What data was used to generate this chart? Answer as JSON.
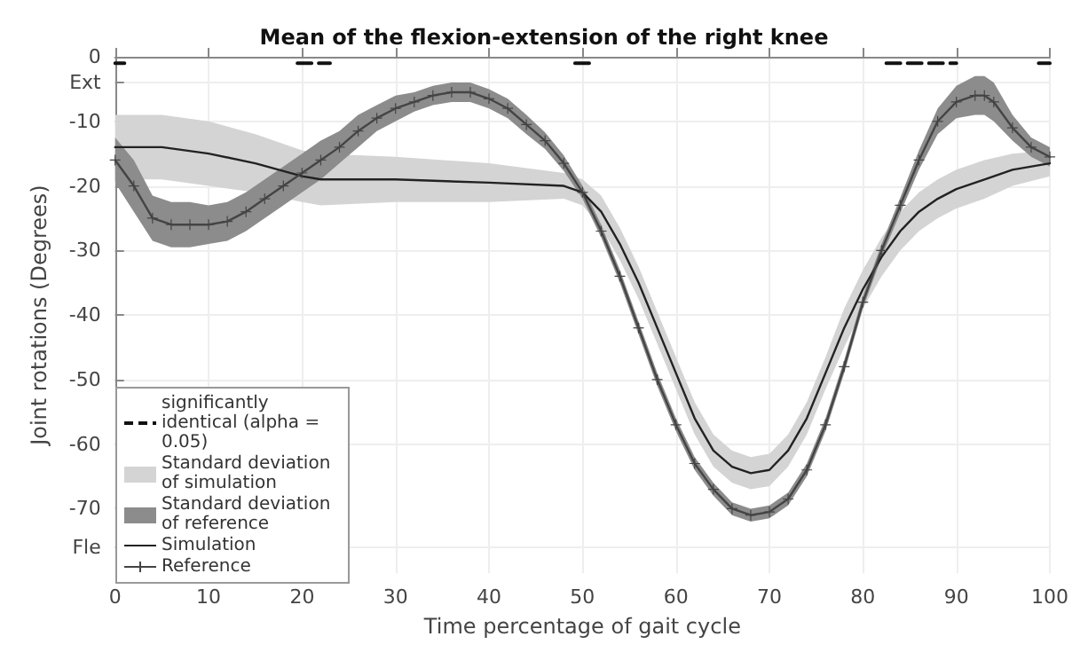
{
  "chart_data": {
    "type": "line",
    "title": "Mean of the flexion-extension of the right knee",
    "xlabel": "Time percentage of gait cycle",
    "ylabel": "Joint rotations (Degrees)",
    "xlim": [
      0,
      100
    ],
    "xticks": [
      0,
      10,
      20,
      30,
      40,
      50,
      60,
      70,
      80,
      90,
      100
    ],
    "ylim": [
      -80,
      0
    ],
    "yticks": [
      0,
      {
        "value": -4,
        "label": "Ext"
      },
      -10,
      -20,
      -30,
      -40,
      -50,
      -60,
      -70,
      {
        "value": -76,
        "label": "Fle"
      }
    ],
    "grid": true,
    "legend": "bottom left",
    "annotations": [
      "Standard deviation of simulation",
      "Standard deviation of reference"
    ],
    "series": [
      {
        "name": "significantly identical (alpha = 0.05)",
        "color": "#111111",
        "line_style": "dashed",
        "marker": "none",
        "x": [
          0,
          1,
          1.5,
          19.5,
          23,
          23.5,
          49.2,
          50.8,
          51.5,
          82.5,
          90,
          90.5,
          98.8,
          100
        ],
        "values": [
          -1,
          -1,
          null,
          -1,
          -1,
          null,
          -1,
          -1,
          null,
          -1,
          -1,
          null,
          -1,
          -1
        ]
      },
      {
        "name": "Simulation",
        "color": "#222222",
        "line_style": "solid",
        "marker": "none",
        "x": [
          0,
          5,
          10,
          15,
          20,
          22,
          30,
          40,
          48,
          50,
          52,
          54,
          56,
          58,
          60,
          62,
          64,
          66,
          68,
          70,
          72,
          74,
          76,
          78,
          80,
          82,
          84,
          86,
          88,
          90,
          93,
          96,
          100
        ],
        "values": [
          -14,
          -14,
          -15,
          -16.5,
          -18.5,
          -19,
          -19,
          -19.5,
          -20,
          -21,
          -24,
          -29,
          -35,
          -42,
          -49,
          -56,
          -61,
          -63.5,
          -64.5,
          -64,
          -61,
          -56,
          -49,
          -42,
          -36,
          -31,
          -27,
          -24,
          -22,
          -20.5,
          -19,
          -17.5,
          -16.5
        ],
        "upper": [
          -9,
          -9,
          -10,
          -12,
          -14.5,
          -15,
          -15.5,
          -16.5,
          -18,
          -19,
          -21.5,
          -26.5,
          -32.5,
          -39.5,
          -46.5,
          -53.5,
          -58.5,
          -61,
          -62,
          -61.5,
          -58.5,
          -53.5,
          -46.5,
          -39,
          -33,
          -28,
          -24,
          -21,
          -19,
          -17.5,
          -16,
          -15,
          -14.5
        ],
        "lower": [
          -19,
          -19,
          -20,
          -21,
          -22.5,
          -23,
          -22.5,
          -22.5,
          -22,
          -23,
          -26.5,
          -31.5,
          -37.5,
          -44.5,
          -51.5,
          -58.5,
          -63.5,
          -66,
          -67,
          -66.5,
          -63.5,
          -58.5,
          -51.5,
          -45,
          -39,
          -34,
          -30,
          -27,
          -25,
          -23.5,
          -22,
          -20,
          -18.5
        ]
      },
      {
        "name": "Reference",
        "color": "#444444",
        "line_style": "solid",
        "marker": "cross",
        "x": [
          0,
          2,
          4,
          6,
          8,
          10,
          12,
          14,
          16,
          18,
          20,
          22,
          24,
          26,
          28,
          30,
          32,
          34,
          36,
          38,
          40,
          42,
          44,
          46,
          48,
          50,
          52,
          54,
          56,
          58,
          60,
          62,
          64,
          66,
          68,
          70,
          72,
          74,
          76,
          78,
          80,
          82,
          84,
          86,
          88,
          90,
          92,
          93,
          94,
          96,
          98,
          100
        ],
        "values": [
          -16,
          -20,
          -25,
          -26,
          -26,
          -26,
          -25.5,
          -24,
          -22,
          -20,
          -18,
          -16,
          -14,
          -11.5,
          -9.5,
          -8,
          -7,
          -6,
          -5.5,
          -5.5,
          -6.5,
          -8,
          -10.5,
          -13,
          -16.5,
          -21,
          -27,
          -34,
          -42,
          -50,
          -57,
          -63,
          -67,
          -70,
          -71,
          -70.5,
          -68.5,
          -64,
          -57,
          -48,
          -38,
          -30,
          -23,
          -16,
          -10,
          -7,
          -6,
          -6,
          -7,
          -11,
          -14,
          -15.5
        ],
        "upper": [
          -12.5,
          -16,
          -21.5,
          -22.5,
          -22.5,
          -23,
          -22.5,
          -21,
          -19,
          -17,
          -15,
          -13,
          -11.5,
          -9,
          -7.5,
          -6,
          -5.5,
          -4.5,
          -4,
          -4,
          -5,
          -6.5,
          -9,
          -11.7,
          -15.3,
          -20,
          -26,
          -33,
          -41,
          -49,
          -56,
          -62,
          -66,
          -69,
          -70,
          -69.5,
          -67.5,
          -63,
          -56,
          -47,
          -37,
          -29,
          -21.8,
          -14.5,
          -8,
          -4.5,
          -3,
          -3,
          -4,
          -9,
          -12.5,
          -14
        ],
        "lower": [
          -19.5,
          -24,
          -28.5,
          -29.5,
          -29.5,
          -29,
          -28.5,
          -27,
          -25,
          -23,
          -21,
          -19,
          -16.5,
          -14,
          -11.5,
          -10,
          -8.5,
          -7.5,
          -7,
          -7,
          -8,
          -9.5,
          -12,
          -14.3,
          -17.7,
          -22,
          -28,
          -35,
          -43,
          -51,
          -58,
          -64,
          -68,
          -71,
          -72,
          -71.5,
          -69.5,
          -65,
          -58,
          -49,
          -39,
          -31,
          -24.2,
          -17.5,
          -12,
          -9.5,
          -9,
          -9,
          -10,
          -13,
          -15.5,
          -17
        ]
      }
    ]
  }
}
